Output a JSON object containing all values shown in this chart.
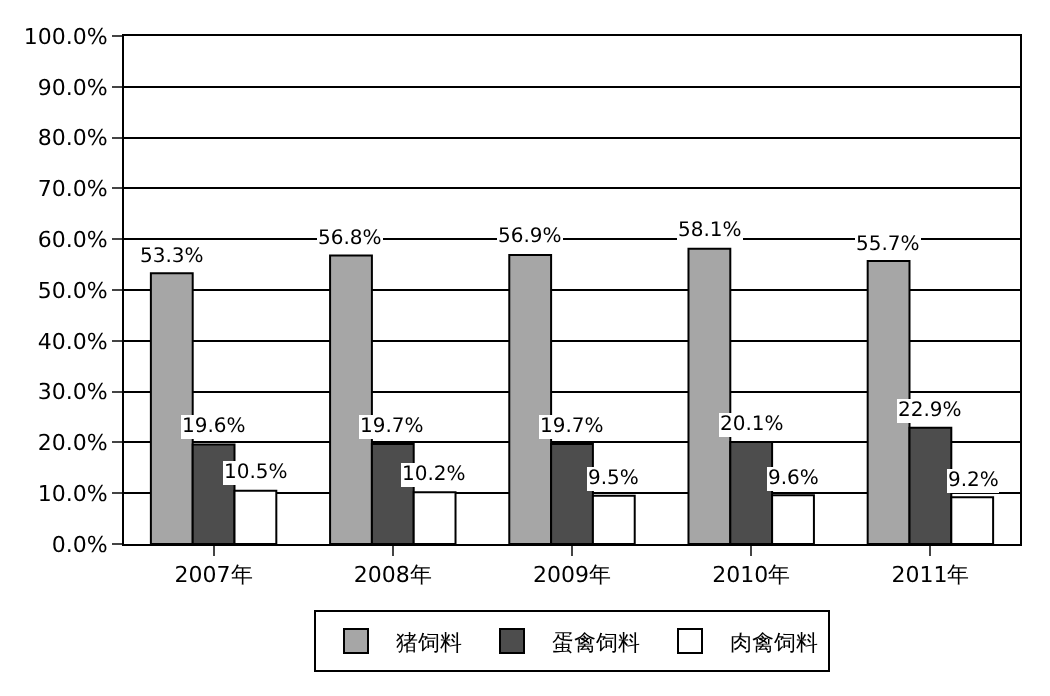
{
  "chart_data": {
    "type": "bar",
    "categories": [
      "2007年",
      "2008年",
      "2009年",
      "2010年",
      "2011年"
    ],
    "series": [
      {
        "name": "猪饲料",
        "color": "#a6a6a6",
        "values": [
          53.3,
          56.8,
          56.9,
          58.1,
          55.7
        ],
        "value_labels": [
          "53.3%",
          "56.8%",
          "56.9%",
          "58.1%",
          "55.7%"
        ]
      },
      {
        "name": "蛋禽饲料",
        "color": "#4d4d4d",
        "values": [
          19.6,
          19.7,
          19.7,
          20.1,
          22.9
        ],
        "value_labels": [
          "19.6%",
          "19.7%",
          "19.7%",
          "20.1%",
          "22.9%"
        ]
      },
      {
        "name": "肉禽饲料",
        "color": "#ffffff",
        "values": [
          10.5,
          10.2,
          9.5,
          9.6,
          9.2
        ],
        "value_labels": [
          "10.5%",
          "10.2%",
          "9.5%",
          "9.6%",
          "9.2%"
        ]
      }
    ],
    "ylim": [
      0,
      100
    ],
    "yticks": [
      {
        "value": 0,
        "label": "0.0%"
      },
      {
        "value": 10,
        "label": "10.0%"
      },
      {
        "value": 20,
        "label": "20.0%"
      },
      {
        "value": 30,
        "label": "30.0%"
      },
      {
        "value": 40,
        "label": "40.0%"
      },
      {
        "value": 50,
        "label": "50.0%"
      },
      {
        "value": 60,
        "label": "60.0%"
      },
      {
        "value": 70,
        "label": "70.0%"
      },
      {
        "value": 80,
        "label": "80.0%"
      },
      {
        "value": 90,
        "label": "90.0%"
      },
      {
        "value": 100,
        "label": "100.0%"
      }
    ],
    "grid": "y",
    "legend": "bottom"
  }
}
